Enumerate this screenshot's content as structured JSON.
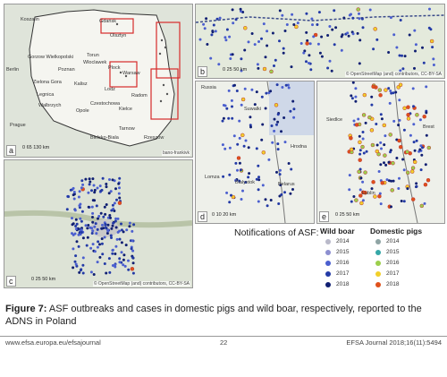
{
  "panels": {
    "a": {
      "label": "a",
      "scale": "0  65 130 km",
      "credit": "bano-frankivk",
      "cities": [
        "Koszalin",
        "Gdańsk",
        "Olsztyn",
        "Berlin",
        "Gorzow Wielkopolski",
        "Torun",
        "Wloclawek",
        "Poznan",
        "Plock",
        "Zielona Gora",
        "Kalisz",
        "Warsaw",
        "Legnica",
        "Lodz",
        "Radom",
        "Walbrzych",
        "Opole",
        "Czestochowa",
        "Kielce",
        "Prague",
        "Rzeszow",
        "Tarnow",
        "Bielsko-Biala"
      ]
    },
    "b": {
      "label": "b",
      "scale": "0   25   50 km",
      "credit": "© OpenStreetMap (and) contributors, CC-BY-SA"
    },
    "c": {
      "label": "c",
      "scale": "0   25   50 km",
      "credit": "© OpenStreetMap (and) contributors, CC-BY-SA"
    },
    "d": {
      "label": "d",
      "scale": "0  10  20 km",
      "cities": [
        "Russia",
        "Suwalki",
        "Hrodna",
        "Lomza",
        "Bialystok",
        "Belarus"
      ]
    },
    "e": {
      "label": "e",
      "scale": "0   25   50 km",
      "cities": [
        "Siedlce",
        "Brest",
        "Lublin"
      ]
    }
  },
  "legend": {
    "title": "Notifications of ASF:",
    "wild_boar_header": "Wild boar",
    "domestic_pigs_header": "Domestic pigs",
    "wild_boar": [
      {
        "year": "2014",
        "color": "#b9b9c9"
      },
      {
        "year": "2015",
        "color": "#8d8fd0"
      },
      {
        "year": "2016",
        "color": "#4b5fcf"
      },
      {
        "year": "2017",
        "color": "#233aa6"
      },
      {
        "year": "2018",
        "color": "#101f72"
      }
    ],
    "domestic_pigs": [
      {
        "year": "2014",
        "color": "#8fa4a4"
      },
      {
        "year": "2015",
        "color": "#35a7a7"
      },
      {
        "year": "2016",
        "color": "#9ccf4c"
      },
      {
        "year": "2017",
        "color": "#f2d02a"
      },
      {
        "year": "2018",
        "color": "#e0511b"
      }
    ]
  },
  "caption": {
    "label": "Figure 7:",
    "text": "ASF outbreaks and cases in domestic pigs and wild boar, respectively, reported to the ADNS in Poland"
  },
  "footer": {
    "left": "www.efsa.europa.eu/efsajournal",
    "center": "22",
    "right": "EFSA Journal 2018;16(11):5494"
  }
}
